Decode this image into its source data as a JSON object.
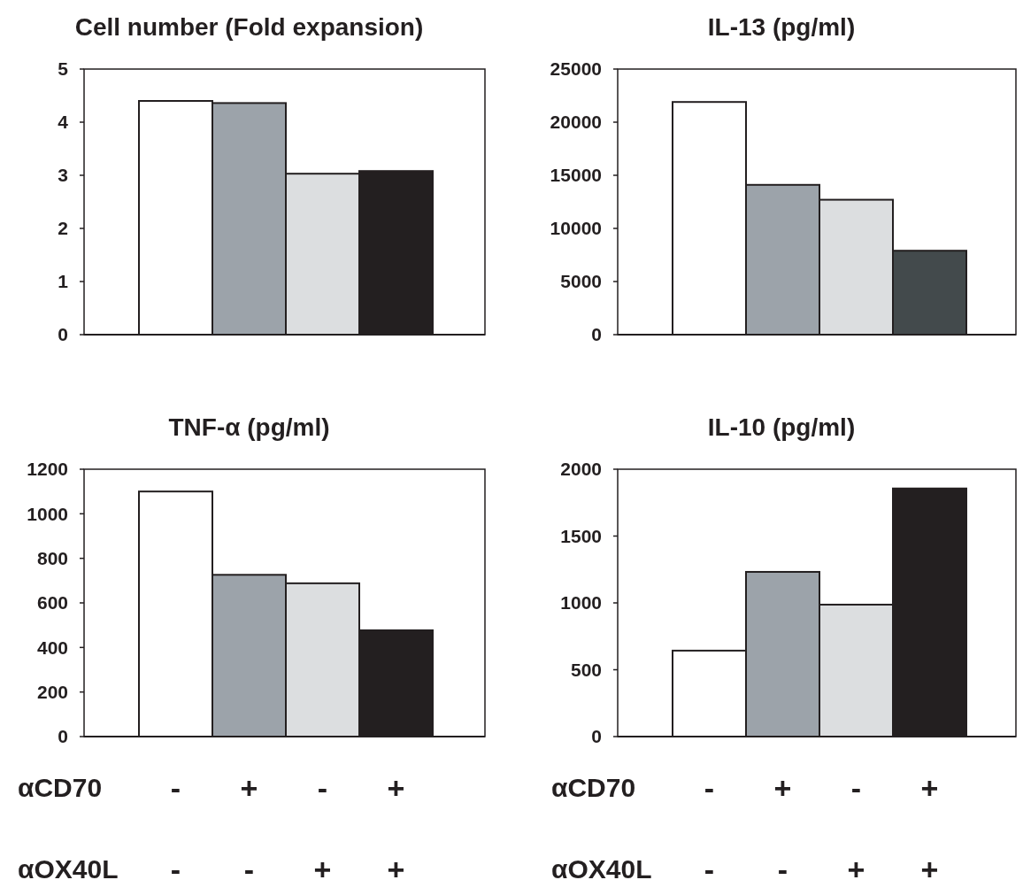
{
  "chart_data": [
    {
      "type": "bar",
      "title": "Cell number (Fold expansion)",
      "categories": [
        null,
        null,
        null,
        null
      ],
      "values": [
        4.4,
        4.36,
        3.03,
        3.08
      ],
      "colors": [
        "#ffffff",
        "#9ca3aa",
        "#dcdee0",
        "#231f20"
      ],
      "ylim": [
        0,
        5
      ],
      "yticks": [
        0,
        1,
        2,
        3,
        4,
        5
      ]
    },
    {
      "type": "bar",
      "title": "IL-13 (pg/ml)",
      "categories": [
        null,
        null,
        null,
        null
      ],
      "values": [
        21900,
        14100,
        12700,
        7900
      ],
      "colors": [
        "#ffffff",
        "#9ca3aa",
        "#dcdee0",
        "#434a4c"
      ],
      "ylim": [
        0,
        25000
      ],
      "yticks": [
        0,
        5000,
        10000,
        15000,
        20000,
        25000
      ]
    },
    {
      "type": "bar",
      "title": "TNF-α (pg/ml)",
      "categories": [
        "-\n-",
        "+\n-",
        "-\n+",
        "+\n+"
      ],
      "values": [
        1100,
        726,
        688,
        477
      ],
      "colors": [
        "#ffffff",
        "#9ca3aa",
        "#dcdee0",
        "#231f20"
      ],
      "ylim": [
        0,
        1200
      ],
      "yticks": [
        0,
        200,
        400,
        600,
        800,
        1000,
        1200
      ],
      "annotations": [
        "αCD70",
        "αOX40L"
      ]
    },
    {
      "type": "bar",
      "title": "IL-10 (pg/ml)",
      "categories": [
        "-\n-",
        "+\n-",
        "-\n+",
        "+\n+"
      ],
      "values": [
        643,
        1232,
        987,
        1856
      ],
      "colors": [
        "#ffffff",
        "#9ca3aa",
        "#dcdee0",
        "#231f20"
      ],
      "ylim": [
        0,
        2000
      ],
      "yticks": [
        0,
        500,
        1000,
        1500,
        2000
      ],
      "annotations": [
        "αCD70",
        "αOX40L"
      ]
    }
  ]
}
